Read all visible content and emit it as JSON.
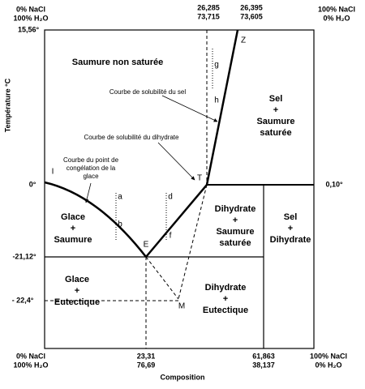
{
  "axis": {
    "y_label": "Température °C",
    "x_label": "Composition"
  },
  "top_labels": [
    [
      "0% NaCl",
      "100% H₂O"
    ],
    [
      "26,285",
      "73,715"
    ],
    [
      "26,395",
      "73,605"
    ],
    [
      "100% NaCl",
      "0% H₂O"
    ]
  ],
  "bottom_labels": [
    [
      "0% NaCl",
      "100% H₂O"
    ],
    [
      "23,31",
      "76,69"
    ],
    [
      "61,863",
      "38,137"
    ],
    [
      "100% NaCl",
      "0% H₂O"
    ]
  ],
  "left_labels": [
    "15,56°",
    "0°",
    "-21,12°",
    "- 22,4°"
  ],
  "right_labels": [
    "0,10°"
  ],
  "regions": [
    [
      "Saumure non saturée"
    ],
    [
      "Sel",
      "+",
      "Saumure",
      "saturée"
    ],
    [
      "Glace",
      "+",
      "Saumure"
    ],
    [
      "Dihydrate",
      "+",
      "Saumure",
      "saturée"
    ],
    [
      "Sel",
      "+",
      "Dihydrate"
    ],
    [
      "Glace",
      "+",
      "Eutectique"
    ],
    [
      "Dihydrate",
      "+",
      "Eutectique"
    ]
  ],
  "annotations": [
    [
      "Courbe de solubilité du sel"
    ],
    [
      "Courbe de solubilité du dihydrate"
    ],
    [
      "Courbe du point de",
      "congélation de la",
      "glace"
    ]
  ],
  "points": [
    "I",
    "Z",
    "g",
    "h",
    "T",
    "a",
    "b",
    "d",
    "f",
    "E",
    "M"
  ]
}
